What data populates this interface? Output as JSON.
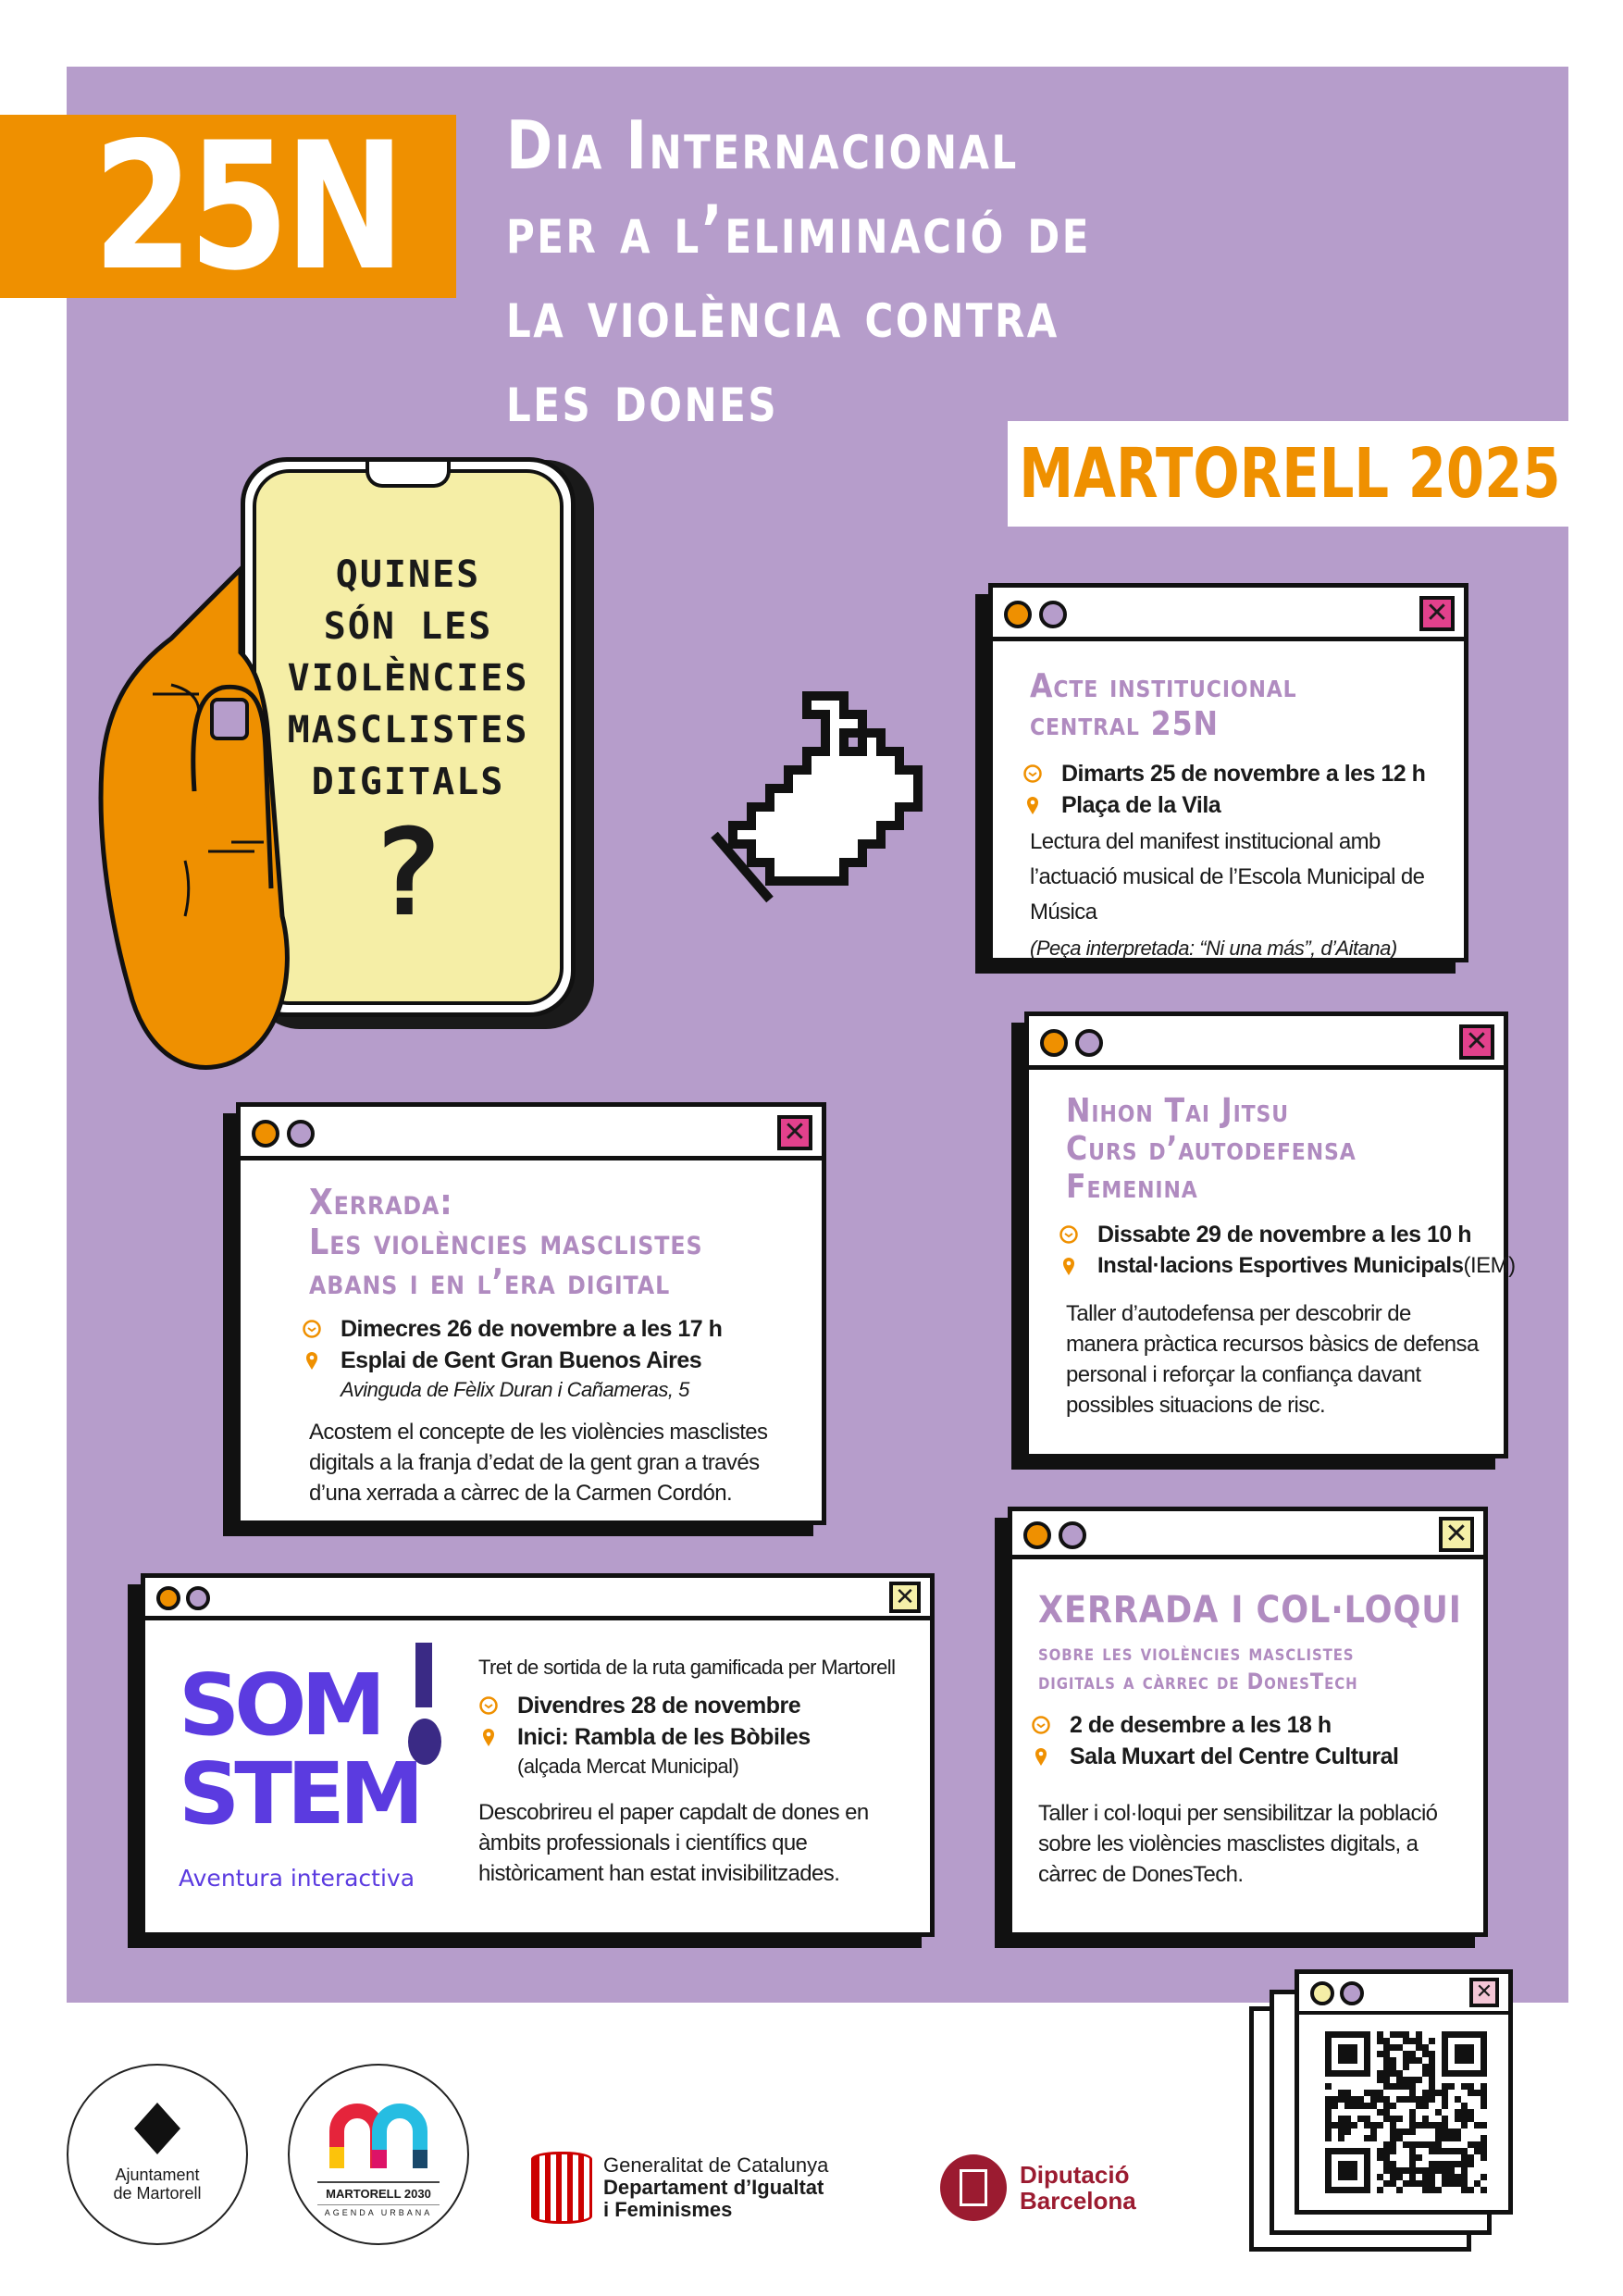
{
  "header": {
    "badge": "25N",
    "title_lines": [
      "Dia Internacional",
      "per a l’eliminació de",
      "la violència contra",
      "les dones"
    ],
    "city": "MARTORELL 2025"
  },
  "phone": {
    "lines": [
      "QUINES",
      "SÓN LES",
      "VIOLÈNCIES",
      "MASCLISTES",
      "DIGITALS"
    ],
    "mark": "?"
  },
  "colors": {
    "purple": "#b69dcb",
    "orange": "#ef9000",
    "pink": "#e2418c",
    "screen": "#f5eea6",
    "title_text": "#b08bc0"
  },
  "events": [
    {
      "title_lines": [
        "Acte institucional",
        "central 25N"
      ],
      "date": "Dimarts 25 de novembre  a les 12 h",
      "place": "Plaça de la Vila",
      "description": "Lectura del manifest institucional amb l’actuació musical de l’Escola Municipal de Música",
      "note": "(Peça interpretada: “Ni una más”, d’Aitana)"
    },
    {
      "title_lines": [
        "Nihon Tai Jitsu",
        "Curs d’autodefensa",
        "Femenina"
      ],
      "date": "Dissabte 29 de novembre a les 10 h",
      "place": "Instal·lacions Esportives Municipals",
      "place_suffix": " (IEM)",
      "description": "Taller d’autodefensa per descobrir de manera pràctica recursos bàsics de defensa personal i reforçar la confiança davant possibles situacions de risc."
    },
    {
      "title_lines": [
        "Xerrada:",
        "Les violències masclistes",
        "abans i en l’era digital"
      ],
      "date": "Dimecres 26 de novembre a les 17 h",
      "place": "Esplai de Gent Gran Buenos Aires",
      "address": "Avinguda de Fèlix Duran i Cañameras, 5",
      "description": "Acostem el concepte de les violències masclistes digitals a la franja d’edat de la gent gran a través d’una xerrada a càrrec de la Carmen Cordón."
    },
    {
      "logo_top": "SOM",
      "logo_bottom": "STEM",
      "logo_caption": "Aventura interactiva",
      "intro": "Tret de sortida de la ruta gamificada per Martorell",
      "date": "Divendres 28 de novembre",
      "place": "Inici: Rambla de les Bòbiles",
      "address": "(alçada Mercat Municipal)",
      "description": "Descobrireu el paper capdalt de dones en àmbits professionals i científics que històricament han estat invisibilitzades."
    },
    {
      "title": "XERRADA I COL·LOQUI",
      "subtitle_lines": [
        "sobre les violències masclistes",
        "digitals a càrrec de DonesTech"
      ],
      "date": "2 de desembre a les 18 h",
      "place": "Sala Muxart del Centre Cultural",
      "description": "Taller i col·loqui per sensibilitzar la població sobre les violències masclistes digitals, a càrrec de DonesTech."
    }
  ],
  "footer": {
    "ajuntament": [
      "Ajuntament",
      "de Martorell"
    ],
    "agenda": {
      "name": "MARTORELL 2030",
      "sub": "AGENDA URBANA"
    },
    "generalitat": [
      "Generalitat de Catalunya",
      "Departament d’Igualtat",
      "i Feminismes"
    ],
    "diputacio": [
      "Diputació",
      "Barcelona"
    ]
  }
}
